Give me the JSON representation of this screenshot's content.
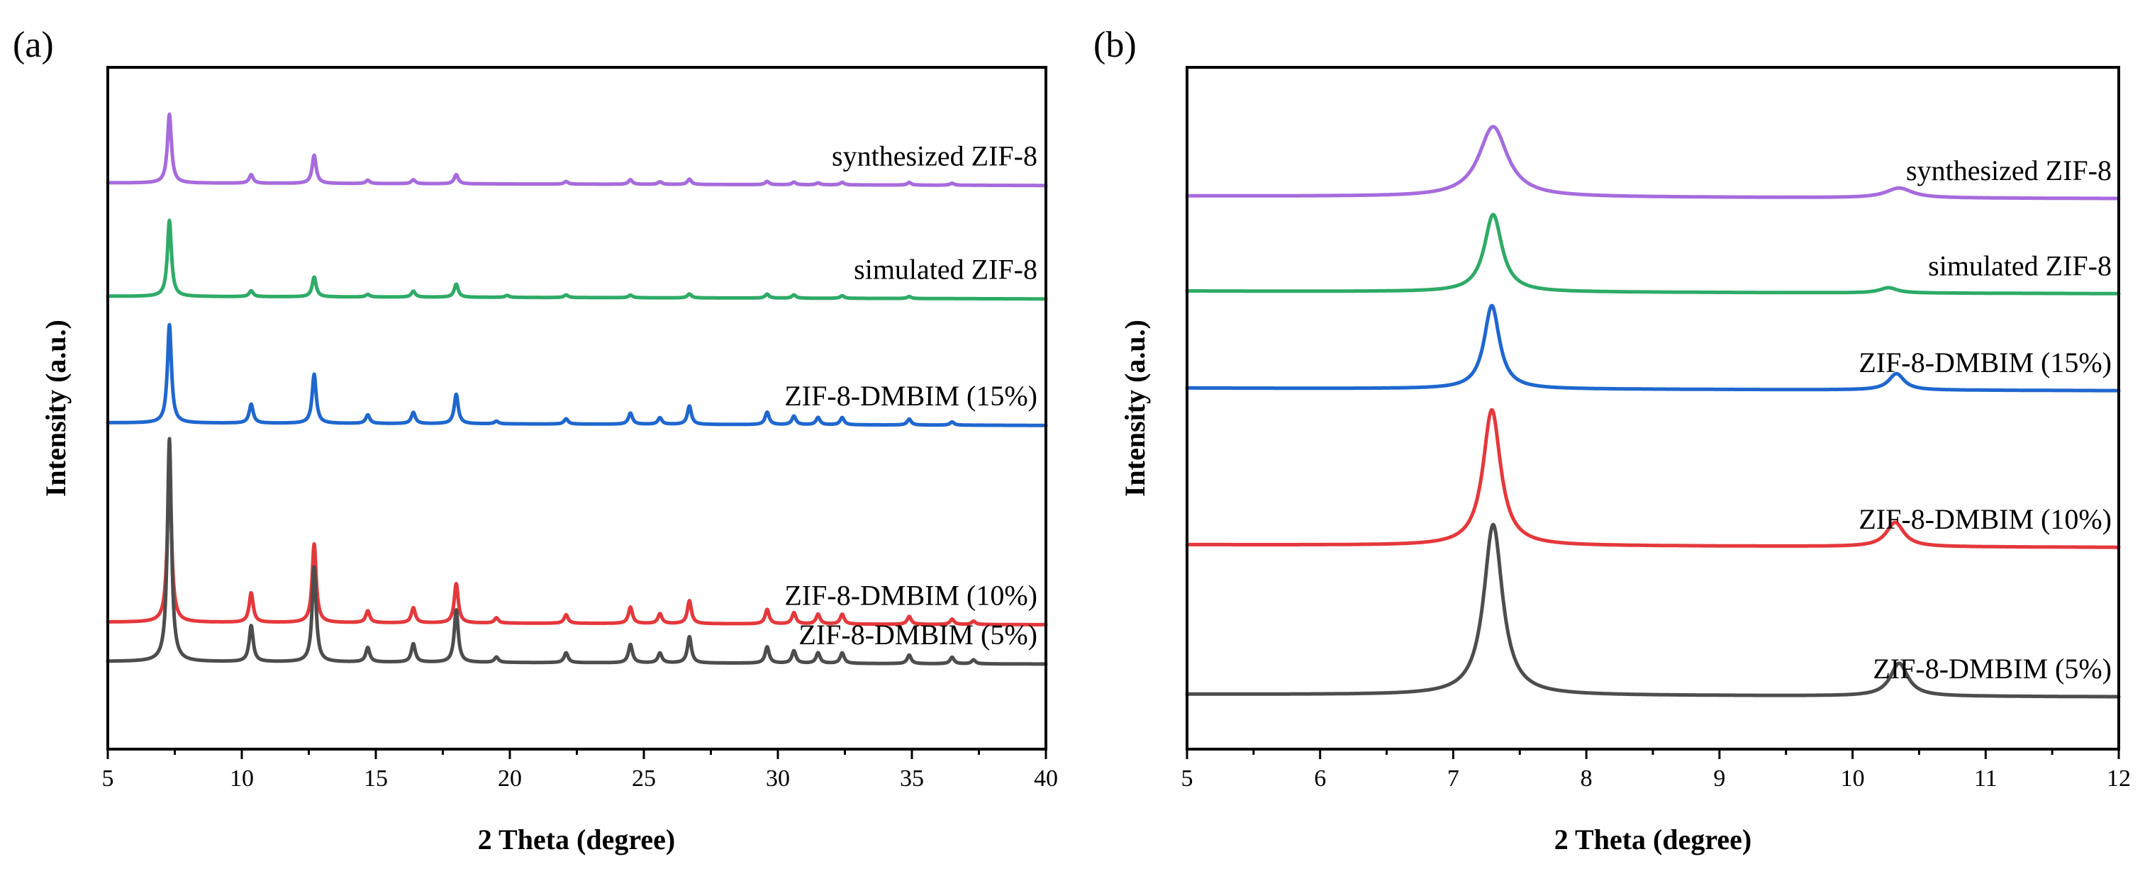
{
  "chart_data": [
    {
      "panel": "(a)",
      "type": "line",
      "title": "",
      "xlabel": "2 Theta (degree)",
      "ylabel": "Intensity (a.u.)",
      "xlim": [
        5,
        40
      ],
      "xticks": [
        5,
        10,
        15,
        20,
        25,
        30,
        35,
        40
      ],
      "tick_labels": [
        "5",
        "10",
        "15",
        "20",
        "25",
        "30",
        "35",
        "40"
      ],
      "ylim": [
        0,
        1
      ],
      "yticks_visible": false,
      "grid": false,
      "series": [
        {
          "name": "synthesized ZIF-8",
          "color": "#a66bdd",
          "offset": 0.84,
          "peaks": [
            [
              7.3,
              0.105
            ],
            [
              10.35,
              0.013
            ],
            [
              12.7,
              0.043
            ],
            [
              14.7,
              0.005
            ],
            [
              16.4,
              0.006
            ],
            [
              18.0,
              0.014
            ],
            [
              22.1,
              0.004
            ],
            [
              24.5,
              0.007
            ],
            [
              25.6,
              0.004
            ],
            [
              26.7,
              0.008
            ],
            [
              29.6,
              0.005
            ],
            [
              30.6,
              0.004
            ],
            [
              31.5,
              0.003
            ],
            [
              32.4,
              0.004
            ],
            [
              34.9,
              0.004
            ],
            [
              36.5,
              0.003
            ]
          ]
        },
        {
          "name": "simulated ZIF-8",
          "color": "#2eab67",
          "offset": 0.667,
          "peaks": [
            [
              7.3,
              0.116
            ],
            [
              10.35,
              0.009
            ],
            [
              12.7,
              0.03
            ],
            [
              14.7,
              0.004
            ],
            [
              16.4,
              0.009
            ],
            [
              18.0,
              0.02
            ],
            [
              19.9,
              0.003
            ],
            [
              22.1,
              0.004
            ],
            [
              24.5,
              0.004
            ],
            [
              26.7,
              0.006
            ],
            [
              29.6,
              0.006
            ],
            [
              30.6,
              0.005
            ],
            [
              32.4,
              0.004
            ],
            [
              34.9,
              0.003
            ]
          ]
        },
        {
          "name": "ZIF-8-DMBIM (15%)",
          "color": "#1f67cf",
          "offset": 0.474,
          "peaks": [
            [
              7.3,
              0.15
            ],
            [
              10.35,
              0.029
            ],
            [
              12.7,
              0.075
            ],
            [
              14.7,
              0.013
            ],
            [
              16.4,
              0.017
            ],
            [
              18.0,
              0.045
            ],
            [
              19.5,
              0.004
            ],
            [
              22.1,
              0.008
            ],
            [
              24.5,
              0.017
            ],
            [
              25.6,
              0.01
            ],
            [
              26.7,
              0.028
            ],
            [
              29.6,
              0.019
            ],
            [
              30.6,
              0.013
            ],
            [
              31.5,
              0.011
            ],
            [
              32.4,
              0.011
            ],
            [
              34.9,
              0.009
            ],
            [
              36.5,
              0.005
            ]
          ]
        },
        {
          "name": "ZIF-8-DMBIM (10%)",
          "color": "#e5383b",
          "offset": 0.17,
          "peaks": [
            [
              7.3,
              0.24
            ],
            [
              10.35,
              0.045
            ],
            [
              12.7,
              0.12
            ],
            [
              14.7,
              0.018
            ],
            [
              16.4,
              0.023
            ],
            [
              18.0,
              0.06
            ],
            [
              19.5,
              0.008
            ],
            [
              22.1,
              0.013
            ],
            [
              24.5,
              0.025
            ],
            [
              25.6,
              0.015
            ],
            [
              26.7,
              0.035
            ],
            [
              29.6,
              0.022
            ],
            [
              30.6,
              0.017
            ],
            [
              31.5,
              0.015
            ],
            [
              32.4,
              0.015
            ],
            [
              34.9,
              0.012
            ],
            [
              36.5,
              0.008
            ],
            [
              37.3,
              0.005
            ]
          ]
        },
        {
          "name": "ZIF-8-DMBIM (5%)",
          "color": "#4d4d4d",
          "offset": 0.11,
          "peaks": [
            [
              7.3,
              0.34
            ],
            [
              10.35,
              0.055
            ],
            [
              12.7,
              0.145
            ],
            [
              14.7,
              0.022
            ],
            [
              16.4,
              0.028
            ],
            [
              18.0,
              0.08
            ],
            [
              19.5,
              0.008
            ],
            [
              22.1,
              0.015
            ],
            [
              24.5,
              0.028
            ],
            [
              25.6,
              0.015
            ],
            [
              26.7,
              0.04
            ],
            [
              29.6,
              0.025
            ],
            [
              30.6,
              0.019
            ],
            [
              31.5,
              0.016
            ],
            [
              32.4,
              0.016
            ],
            [
              34.9,
              0.013
            ],
            [
              36.5,
              0.01
            ],
            [
              37.3,
              0.006
            ]
          ]
        }
      ]
    },
    {
      "panel": "(b)",
      "type": "line",
      "title": "",
      "xlabel": "2 Theta (degree)",
      "ylabel": "Intensity (a.u.)",
      "xlim": [
        5,
        12
      ],
      "xticks": [
        5,
        6,
        7,
        8,
        9,
        10,
        11,
        12
      ],
      "tick_labels": [
        "5",
        "6",
        "7",
        "8",
        "9",
        "10",
        "11",
        "12"
      ],
      "ylim": [
        0,
        1
      ],
      "yticks_visible": false,
      "grid": false,
      "series": [
        {
          "name": "synthesized ZIF-8",
          "color": "#a66bdd",
          "offset": 0.82,
          "peaks": [
            [
              7.3,
              0.107,
              0.13
            ],
            [
              10.35,
              0.015,
              0.12
            ]
          ]
        },
        {
          "name": "simulated ZIF-8",
          "color": "#2eab67",
          "offset": 0.675,
          "peaks": [
            [
              7.3,
              0.118,
              0.08
            ],
            [
              10.27,
              0.008,
              0.08
            ]
          ]
        },
        {
          "name": "ZIF-8-DMBIM (15%)",
          "color": "#1f67cf",
          "offset": 0.527,
          "peaks": [
            [
              7.29,
              0.127,
              0.07
            ],
            [
              10.33,
              0.025,
              0.07
            ]
          ]
        },
        {
          "name": "ZIF-8-DMBIM (10%)",
          "color": "#e5383b",
          "offset": 0.288,
          "peaks": [
            [
              7.29,
              0.207,
              0.08
            ],
            [
              10.32,
              0.037,
              0.08
            ]
          ]
        },
        {
          "name": "ZIF-8-DMBIM (5%)",
          "color": "#4d4d4d",
          "offset": 0.06,
          "peaks": [
            [
              7.3,
              0.26,
              0.085
            ],
            [
              10.35,
              0.05,
              0.08
            ]
          ]
        }
      ]
    }
  ]
}
